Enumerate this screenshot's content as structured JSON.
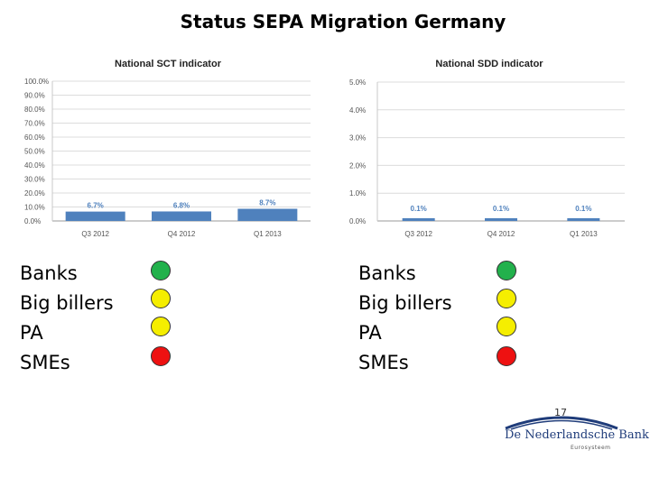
{
  "page": {
    "title": "Status SEPA Migration Germany",
    "page_number": "17"
  },
  "chart_data": [
    {
      "type": "bar",
      "title": "National SCT indicator",
      "categories": [
        "Q3 2012",
        "Q4 2012",
        "Q1 2013"
      ],
      "values": [
        6.7,
        6.8,
        8.7
      ],
      "data_labels": [
        "6.7%",
        "6.8%",
        "8.7%"
      ],
      "ylim": [
        0,
        100
      ],
      "yticks": [
        "0.0%",
        "10.0%",
        "20.0%",
        "30.0%",
        "40.0%",
        "50.0%",
        "60.0%",
        "70.0%",
        "80.0%",
        "90.0%",
        "100.0%"
      ],
      "grid": true,
      "bar_color": "#4f81bd"
    },
    {
      "type": "bar",
      "title": "National SDD indicator",
      "categories": [
        "Q3 2012",
        "Q4 2012",
        "Q1 2013"
      ],
      "values": [
        0.1,
        0.1,
        0.1
      ],
      "data_labels": [
        "0.1%",
        "0.1%",
        "0.1%"
      ],
      "ylim": [
        0,
        5
      ],
      "yticks": [
        "0.0%",
        "1.0%",
        "2.0%",
        "3.0%",
        "4.0%",
        "5.0%"
      ],
      "grid": true,
      "bar_color": "#4f81bd"
    }
  ],
  "status_left": {
    "items": [
      {
        "label": "Banks",
        "status": "green",
        "color": "#22b14c"
      },
      {
        "label": "Big billers",
        "status": "yellow",
        "color": "#f5ee00"
      },
      {
        "label": "PA",
        "status": "yellow",
        "color": "#f5ee00"
      },
      {
        "label": "SMEs",
        "status": "red",
        "color": "#ee1111"
      }
    ]
  },
  "status_right": {
    "items": [
      {
        "label": "Banks",
        "status": "green",
        "color": "#22b14c"
      },
      {
        "label": "Big billers",
        "status": "yellow",
        "color": "#f5ee00"
      },
      {
        "label": "PA",
        "status": "yellow",
        "color": "#f5ee00"
      },
      {
        "label": "SMEs",
        "status": "red",
        "color": "#ee1111"
      }
    ]
  },
  "logo": {
    "name": "De Nederlandsche Bank",
    "subtitle": "Eurosysteem"
  }
}
